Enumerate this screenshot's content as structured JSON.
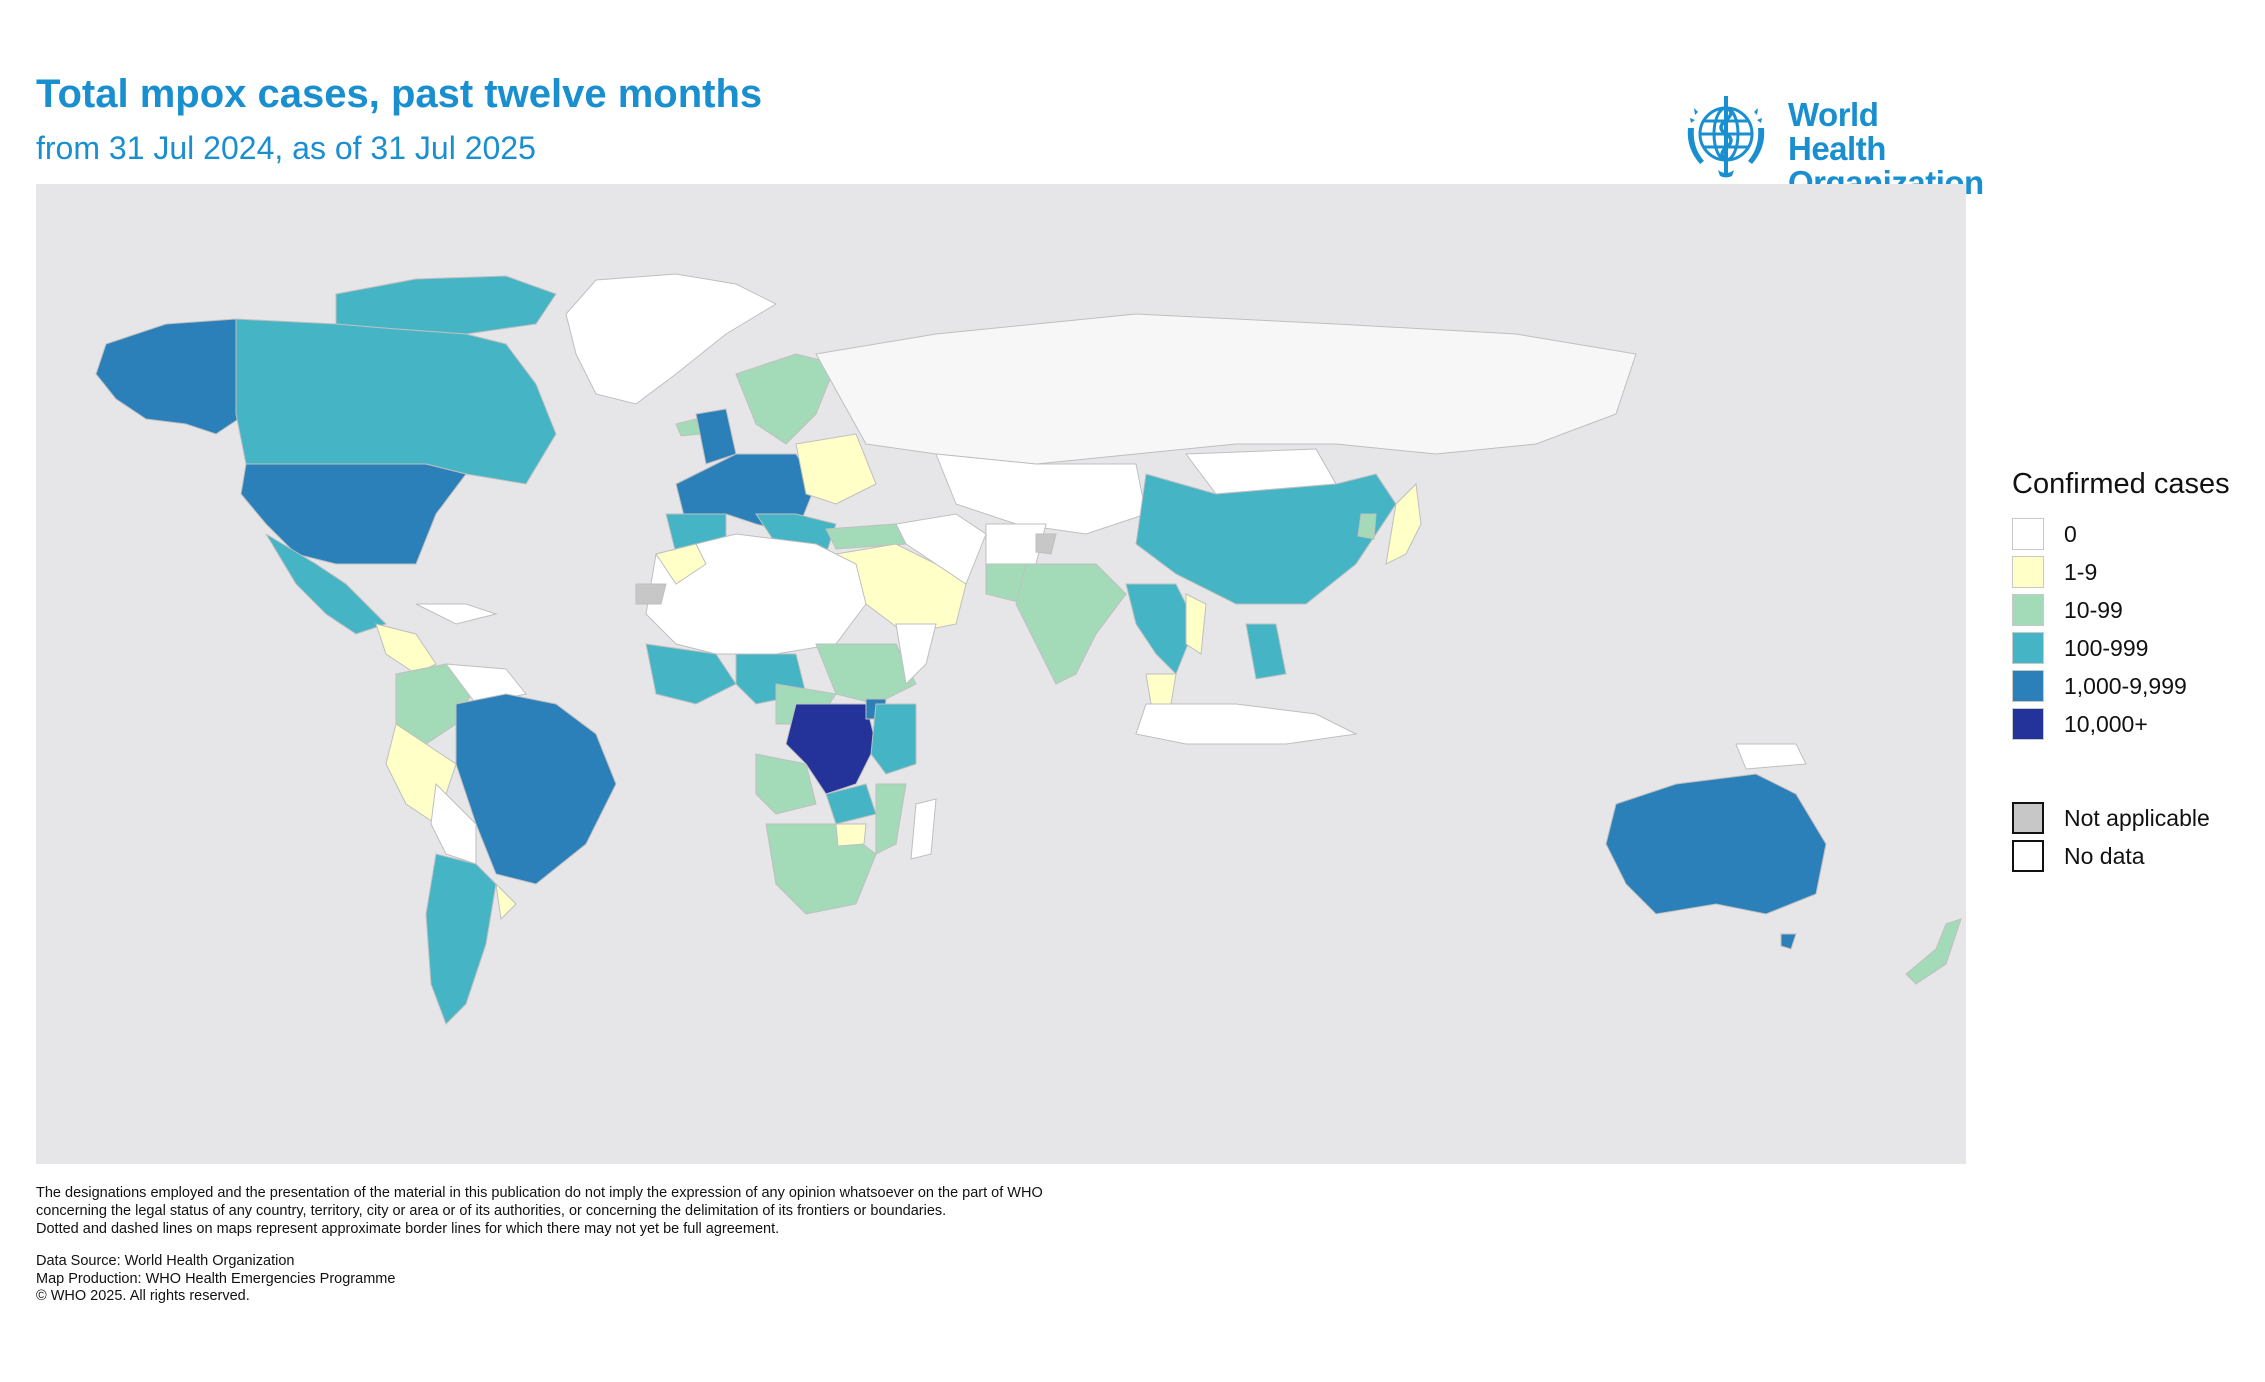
{
  "header": {
    "title": "Total mpox cases, past twelve months",
    "subtitle": "from 31 Jul 2024, as of 31 Jul 2025"
  },
  "logo": {
    "line1": "World Health",
    "line2": "Organization",
    "icon": "who-emblem-icon",
    "color": "#1a8fcf"
  },
  "legend": {
    "title": "Confirmed cases",
    "classes": [
      {
        "label": "0",
        "color": "#ffffff"
      },
      {
        "label": "1-9",
        "color": "#ffffc8"
      },
      {
        "label": "10-99",
        "color": "#a3dbb8"
      },
      {
        "label": "100-999",
        "color": "#45b5c6"
      },
      {
        "label": "1,000-9,999",
        "color": "#2c80b9"
      },
      {
        "label": "10,000+",
        "color": "#24339a"
      }
    ],
    "other": [
      {
        "label": "Not applicable",
        "color": "#c7c7c7"
      },
      {
        "label": "No data",
        "color": "#ffffff"
      }
    ]
  },
  "map": {
    "background_color": "#e6e6e9",
    "no_data_land_color": "#f7f7f7"
  },
  "disclaimer": {
    "line1": "The designations employed and the presentation of the material in this publication do not imply the expression of any opinion whatsoever on the part of WHO",
    "line2": "concerning the legal status of any country, territory, city or area or of its authorities, or concerning the delimitation of its frontiers or boundaries.",
    "line3": "Dotted and dashed lines on maps represent approximate border lines for which there may not yet be full agreement."
  },
  "source": {
    "data_source": "Data Source: World Health Organization",
    "map_production": "Map Production: WHO Health Emergencies Programme",
    "copyright": "© WHO 2025. All rights reserved."
  }
}
